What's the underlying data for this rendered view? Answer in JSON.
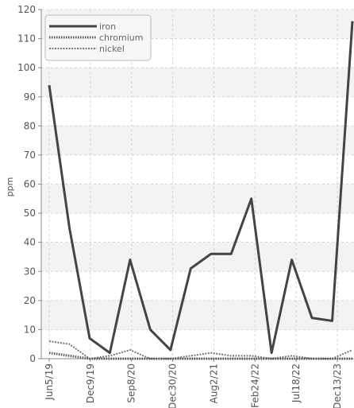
{
  "chart_data": {
    "type": "line",
    "title": "",
    "xlabel": "",
    "ylabel": "ppm",
    "ylim": [
      0,
      120
    ],
    "yticks": [
      0,
      10,
      20,
      30,
      40,
      50,
      60,
      70,
      80,
      90,
      100,
      110,
      120
    ],
    "x_tick_labels": [
      "Jun5/19",
      "Dec9/19",
      "Sep8/20",
      "Dec30/20",
      "Aug2/21",
      "Feb24/22",
      "Jul18/22",
      "Dec13/23"
    ],
    "grid": true,
    "legend_position": "top-left",
    "series": [
      {
        "name": "iron",
        "color": "#444444",
        "values": [
          94,
          45,
          7,
          2,
          34,
          10,
          3,
          31,
          36,
          36,
          55,
          2,
          34,
          14,
          13,
          116
        ]
      },
      {
        "name": "chromium",
        "color": "#555555",
        "values": [
          2,
          1,
          0,
          0,
          0,
          0,
          0,
          0,
          0,
          0,
          0,
          0,
          0,
          0,
          0,
          0
        ]
      },
      {
        "name": "nickel",
        "color": "#777777",
        "values": [
          6,
          5,
          0,
          1,
          3,
          0,
          0,
          1,
          2,
          1,
          1,
          0,
          1,
          0,
          0,
          3
        ]
      }
    ]
  }
}
